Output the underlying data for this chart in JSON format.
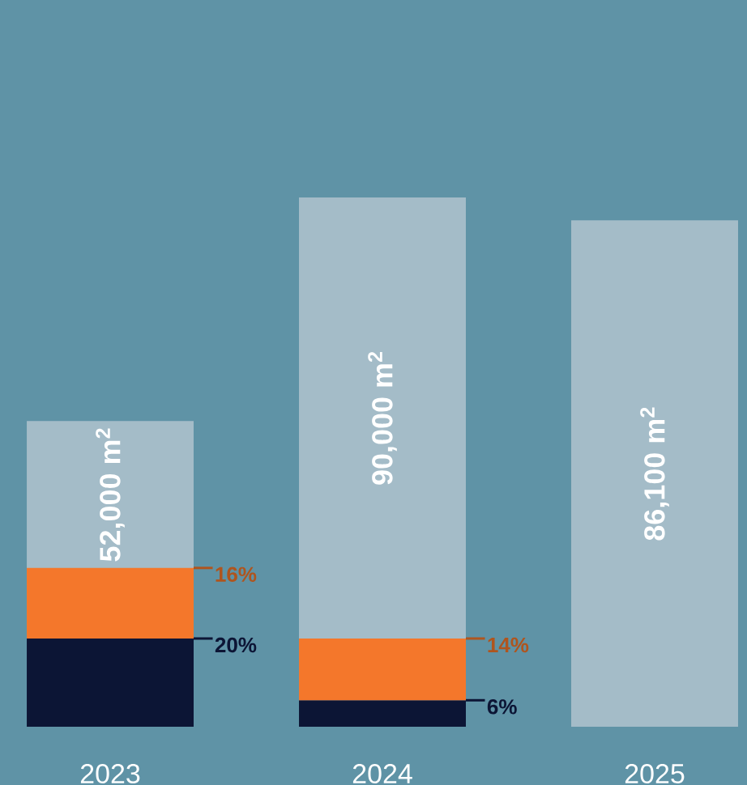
{
  "chart_data": {
    "type": "bar",
    "stacked": true,
    "categories": [
      "2023",
      "2024",
      "2025"
    ],
    "series": [
      {
        "color": "#a4bcc8",
        "values": [
          52000,
          90000,
          86100
        ],
        "value_labels": [
          "52,000 m$^{2}$",
          "90,000 m$^{2}$",
          "86,100 m$^{2}$"
        ]
      },
      {
        "color": "#0c1535",
        "axis": "y2",
        "values": [
          20,
          6,
          null
        ],
        "value_labels": [
          "20%",
          "6%",
          null
        ]
      },
      {
        "color": "#f4772b",
        "axis": "y2",
        "values": [
          16,
          14,
          null
        ],
        "value_labels": [
          "16%",
          "14%",
          null
        ]
      }
    ]
  }
}
